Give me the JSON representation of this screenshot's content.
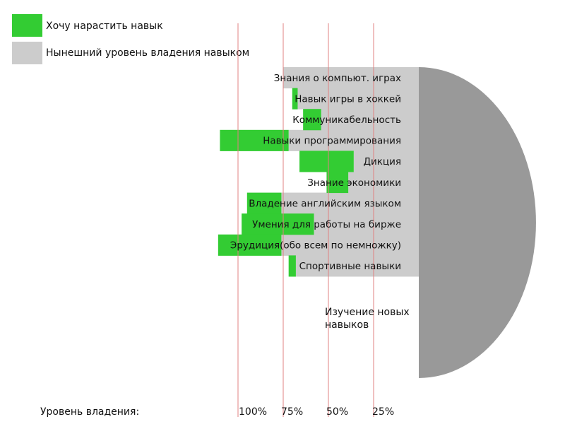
{
  "legend": {
    "want_label": "Хочу нарастить навык",
    "current_label": "Нынешний уровень владения навыком",
    "want_color": "#33cc33",
    "current_color": "#cccccc"
  },
  "semicircle": {
    "label": "Изучение новых навыков",
    "color": "#999999"
  },
  "axis": {
    "title": "Уровень владения:",
    "ticks": [
      "100%",
      "75%",
      "50%",
      "25%"
    ],
    "grid_color": "#e08080"
  },
  "chart_data": {
    "type": "bar",
    "orientation": "horizontal",
    "direction": "right-to-left",
    "xlim": [
      0,
      100
    ],
    "categories": [
      "Знания о компьют. играх",
      "Навык игры в хоккей",
      "Коммуникабельность",
      "Навыки программирования",
      "Дикция",
      "Знание экономики",
      "Владение английским языком",
      "Умения для работы на бирже",
      "Эрудиция(обо всем по немножку)",
      "Спортивные навыки"
    ],
    "series": [
      {
        "name": "Нынешний уровень владения навыком",
        "color": "#cccccc",
        "values": [
          75,
          67,
          54,
          72,
          36,
          39,
          76,
          58,
          76,
          68
        ]
      },
      {
        "name": "Хочу нарастить навык",
        "color": "#33cc33",
        "values": [
          0,
          3,
          10,
          38,
          30,
          12,
          19,
          40,
          35,
          4
        ]
      }
    ]
  }
}
